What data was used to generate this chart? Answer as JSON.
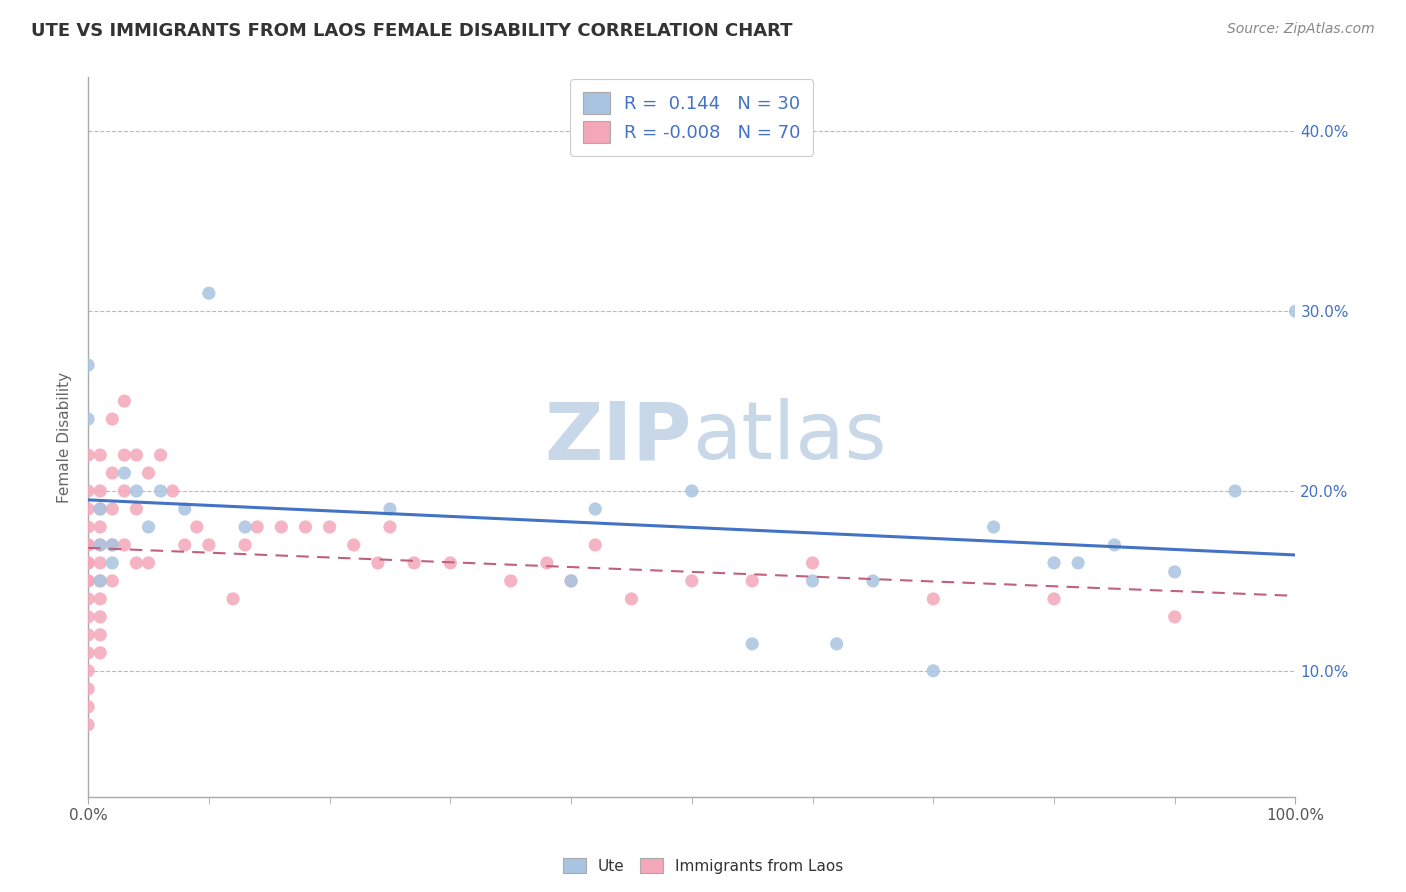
{
  "title": "UTE VS IMMIGRANTS FROM LAOS FEMALE DISABILITY CORRELATION CHART",
  "source_text": "Source: ZipAtlas.com",
  "ylabel": "Female Disability",
  "xlim": [
    0,
    1.0
  ],
  "ylim": [
    0.03,
    0.43
  ],
  "ytick_labels": [
    "10.0%",
    "20.0%",
    "30.0%",
    "40.0%"
  ],
  "ytick_values": [
    0.1,
    0.2,
    0.3,
    0.4
  ],
  "r_ute": 0.144,
  "n_ute": 30,
  "r_laos": -0.008,
  "n_laos": 70,
  "ute_color": "#a8c4e0",
  "laos_color": "#f4a7b9",
  "ute_line_color": "#4472c4",
  "laos_line_color": "#c0607a",
  "background_color": "#ffffff",
  "grid_color": "#bbbbbb",
  "watermark_color": "#dce6f0",
  "ute_scatter_x": [
    0.0,
    0.0,
    0.01,
    0.01,
    0.01,
    0.02,
    0.02,
    0.03,
    0.04,
    0.05,
    0.06,
    0.08,
    0.1,
    0.13,
    0.25,
    0.4,
    0.42,
    0.5,
    0.55,
    0.6,
    0.62,
    0.65,
    0.7,
    0.75,
    0.8,
    0.82,
    0.85,
    0.9,
    0.95,
    1.0
  ],
  "ute_scatter_y": [
    0.27,
    0.24,
    0.19,
    0.17,
    0.15,
    0.17,
    0.16,
    0.21,
    0.2,
    0.18,
    0.2,
    0.19,
    0.31,
    0.18,
    0.19,
    0.15,
    0.19,
    0.2,
    0.115,
    0.15,
    0.115,
    0.15,
    0.1,
    0.18,
    0.16,
    0.16,
    0.17,
    0.155,
    0.2,
    0.3
  ],
  "laos_scatter_x": [
    0.0,
    0.0,
    0.0,
    0.0,
    0.0,
    0.0,
    0.0,
    0.0,
    0.0,
    0.0,
    0.0,
    0.0,
    0.0,
    0.0,
    0.0,
    0.0,
    0.0,
    0.0,
    0.01,
    0.01,
    0.01,
    0.01,
    0.01,
    0.01,
    0.01,
    0.01,
    0.01,
    0.01,
    0.01,
    0.02,
    0.02,
    0.02,
    0.02,
    0.02,
    0.03,
    0.03,
    0.03,
    0.03,
    0.04,
    0.04,
    0.04,
    0.05,
    0.05,
    0.06,
    0.07,
    0.08,
    0.09,
    0.1,
    0.12,
    0.13,
    0.14,
    0.16,
    0.18,
    0.2,
    0.22,
    0.24,
    0.25,
    0.27,
    0.3,
    0.35,
    0.38,
    0.4,
    0.42,
    0.45,
    0.5,
    0.55,
    0.6,
    0.7,
    0.8,
    0.9
  ],
  "laos_scatter_y": [
    0.22,
    0.2,
    0.19,
    0.18,
    0.17,
    0.17,
    0.16,
    0.16,
    0.15,
    0.15,
    0.14,
    0.13,
    0.12,
    0.11,
    0.1,
    0.09,
    0.08,
    0.07,
    0.22,
    0.2,
    0.19,
    0.18,
    0.17,
    0.16,
    0.15,
    0.14,
    0.13,
    0.12,
    0.11,
    0.24,
    0.21,
    0.19,
    0.17,
    0.15,
    0.25,
    0.22,
    0.2,
    0.17,
    0.22,
    0.19,
    0.16,
    0.21,
    0.16,
    0.22,
    0.2,
    0.17,
    0.18,
    0.17,
    0.14,
    0.17,
    0.18,
    0.18,
    0.18,
    0.18,
    0.17,
    0.16,
    0.18,
    0.16,
    0.16,
    0.15,
    0.16,
    0.15,
    0.17,
    0.14,
    0.15,
    0.15,
    0.16,
    0.14,
    0.14,
    0.13
  ]
}
